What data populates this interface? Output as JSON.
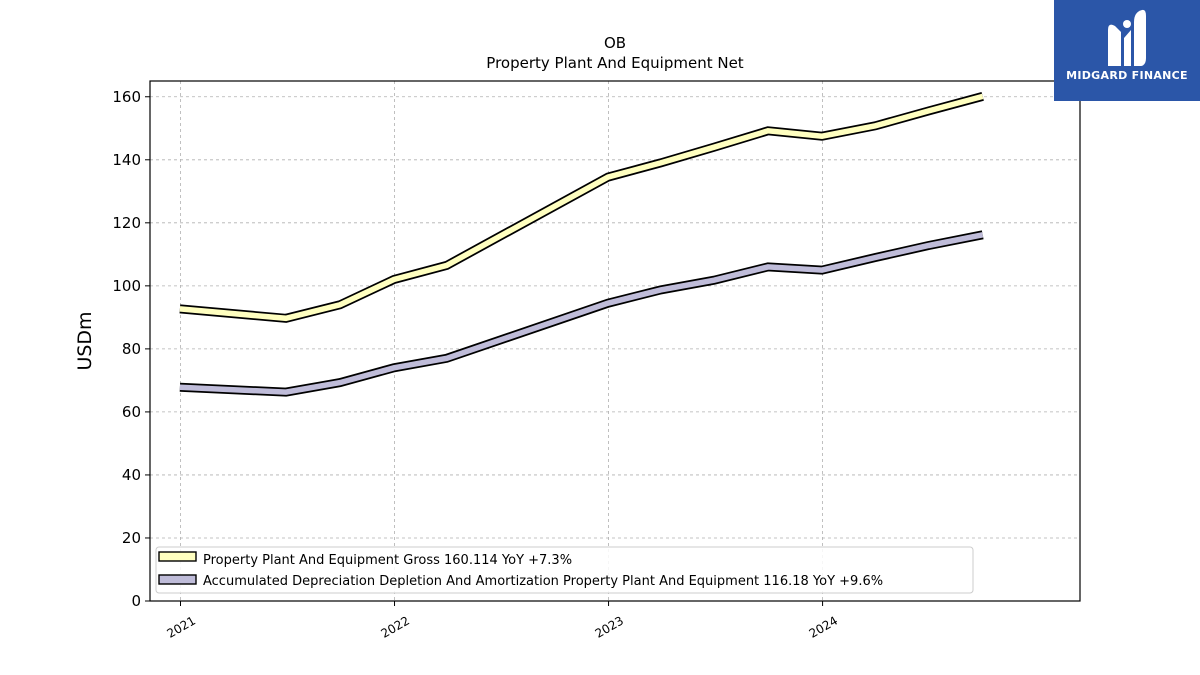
{
  "chart_data": {
    "type": "line",
    "title": "OB",
    "subtitle": "Property Plant And Equipment Net",
    "ylabel": "USDm",
    "xlabel": "",
    "ylim": [
      0,
      165
    ],
    "yticks": [
      0,
      20,
      40,
      60,
      80,
      100,
      120,
      140,
      160
    ],
    "xlim": [
      "2020-11-10",
      "2025-03-15"
    ],
    "xticks": [
      {
        "label": "2021",
        "date": "2021-01-01"
      },
      {
        "label": "2022",
        "date": "2022-01-01"
      },
      {
        "label": "2023",
        "date": "2023-01-01"
      },
      {
        "label": "2024",
        "date": "2024-01-01"
      }
    ],
    "grid": true,
    "legend_position": "lower-left",
    "series": [
      {
        "name": "Property Plant And Equipment Gross",
        "legend_label": "Property Plant And Equipment Gross  160.114 YoY +7.3%",
        "color": "#ffffc0",
        "points": [
          {
            "x": "2020-12-31",
            "y": 92.7
          },
          {
            "x": "2021-06-30",
            "y": 89.7
          },
          {
            "x": "2021-09-30",
            "y": 94.0
          },
          {
            "x": "2021-12-31",
            "y": 102.0
          },
          {
            "x": "2022-03-31",
            "y": 106.5
          },
          {
            "x": "2022-12-31",
            "y": 134.5
          },
          {
            "x": "2023-03-31",
            "y": 139.0
          },
          {
            "x": "2023-06-30",
            "y": 144.0
          },
          {
            "x": "2023-09-30",
            "y": 149.2
          },
          {
            "x": "2023-12-31",
            "y": 147.5
          },
          {
            "x": "2024-03-31",
            "y": 150.8
          },
          {
            "x": "2024-06-30",
            "y": 155.5
          },
          {
            "x": "2024-09-30",
            "y": 160.1
          }
        ]
      },
      {
        "name": "Accumulated Depreciation Depletion And Amortization Property Plant And Equipment",
        "legend_label": "Accumulated Depreciation Depletion And Amortization Property Plant And Equipment  116.18 YoY +9.6%",
        "color": "#bfbcd9",
        "points": [
          {
            "x": "2020-12-31",
            "y": 67.8
          },
          {
            "x": "2021-06-30",
            "y": 66.3
          },
          {
            "x": "2021-09-30",
            "y": 69.3
          },
          {
            "x": "2021-12-31",
            "y": 74.0
          },
          {
            "x": "2022-03-31",
            "y": 77.0
          },
          {
            "x": "2022-12-31",
            "y": 94.5
          },
          {
            "x": "2023-03-31",
            "y": 98.7
          },
          {
            "x": "2023-06-30",
            "y": 101.8
          },
          {
            "x": "2023-09-30",
            "y": 106.0
          },
          {
            "x": "2023-12-31",
            "y": 105.0
          },
          {
            "x": "2024-03-31",
            "y": 109.0
          },
          {
            "x": "2024-06-30",
            "y": 112.8
          },
          {
            "x": "2024-09-30",
            "y": 116.2
          }
        ]
      }
    ]
  },
  "logo": {
    "text": "MIDGARD FINANCE",
    "icon": "midgard-m-logo-icon",
    "background": "#2b56a8"
  }
}
